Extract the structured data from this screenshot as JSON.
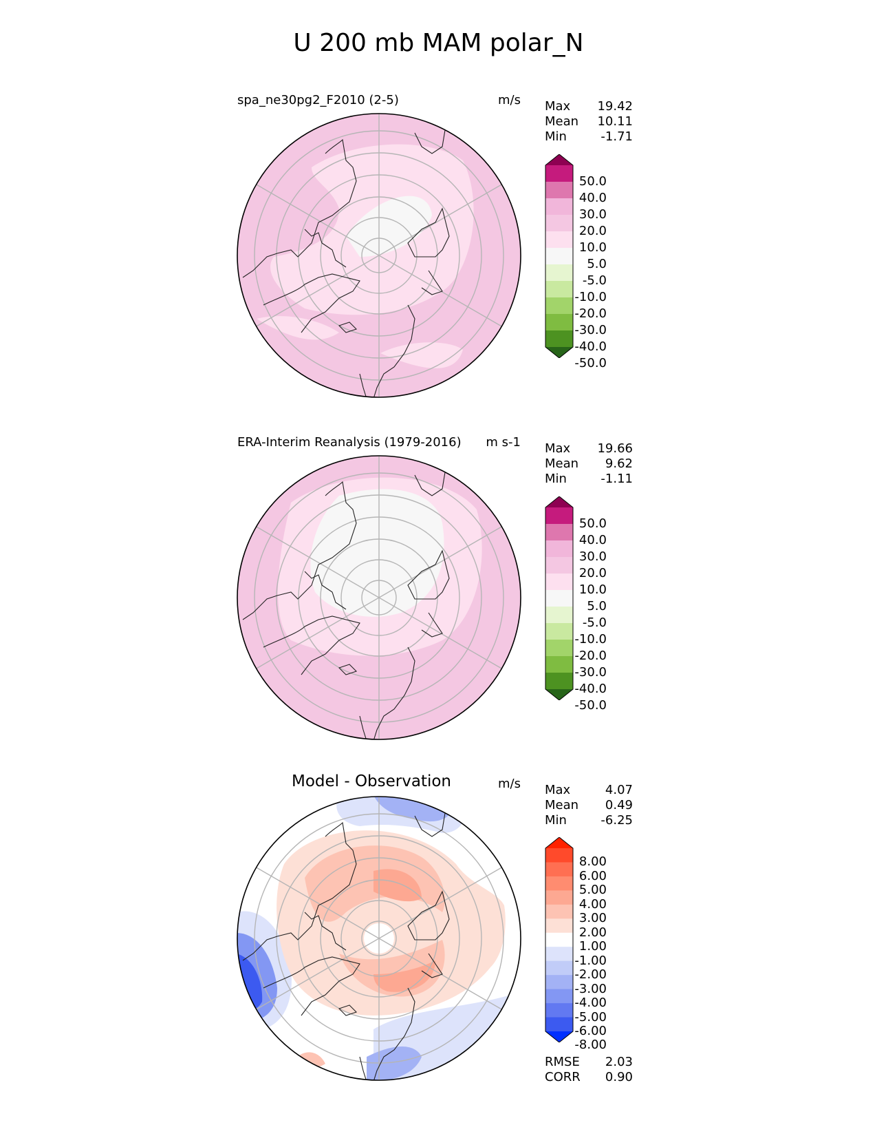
{
  "title": "U 200 mb MAM polar_N",
  "panels": [
    {
      "id": "test",
      "title": "spa_ne30pg2_F2010 (2-5)",
      "units": "m/s",
      "stats": [
        {
          "label": "Max",
          "value": "19.42"
        },
        {
          "label": "Mean",
          "value": "10.11"
        },
        {
          "label": "Min",
          "value": "-1.71"
        }
      ],
      "colorbar": {
        "labels": [
          "50.0",
          "40.0",
          "30.0",
          "20.0",
          "10.0",
          "5.0",
          "-5.0",
          "-10.0",
          "-20.0",
          "-30.0",
          "-40.0",
          "-50.0"
        ],
        "colors": [
          "#8e0152",
          "#c51b7d",
          "#de77ae",
          "#f1b6da",
          "#f4c7e2",
          "#fde0ef",
          "#f7f7f7",
          "#e6f5d0",
          "#c9e9a0",
          "#a2d46a",
          "#7fbc41",
          "#4d9221",
          "#276419"
        ]
      }
    },
    {
      "id": "reference",
      "title": "ERA-Interim Reanalysis (1979-2016)",
      "units": "m s-1",
      "stats": [
        {
          "label": "Max",
          "value": "19.66"
        },
        {
          "label": "Mean",
          "value": "9.62"
        },
        {
          "label": "Min",
          "value": "-1.11"
        }
      ],
      "colorbar": {
        "labels": [
          "50.0",
          "40.0",
          "30.0",
          "20.0",
          "10.0",
          "5.0",
          "-5.0",
          "-10.0",
          "-20.0",
          "-30.0",
          "-40.0",
          "-50.0"
        ],
        "colors": [
          "#8e0152",
          "#c51b7d",
          "#de77ae",
          "#f1b6da",
          "#f4c7e2",
          "#fde0ef",
          "#f7f7f7",
          "#e6f5d0",
          "#c9e9a0",
          "#a2d46a",
          "#7fbc41",
          "#4d9221",
          "#276419"
        ]
      }
    },
    {
      "id": "diff",
      "title": "Model - Observation",
      "units": "m/s",
      "stats": [
        {
          "label": "Max",
          "value": "4.07"
        },
        {
          "label": "Mean",
          "value": "0.49"
        },
        {
          "label": "Min",
          "value": "-6.25"
        }
      ],
      "extra_stats": [
        {
          "label": "RMSE",
          "value": "2.03"
        },
        {
          "label": "CORR",
          "value": "0.90"
        }
      ],
      "colorbar": {
        "labels": [
          "8.00",
          "6.00",
          "5.00",
          "4.00",
          "3.00",
          "2.00",
          "1.00",
          "-1.00",
          "-2.00",
          "-3.00",
          "-4.00",
          "-5.00",
          "-6.00",
          "-8.00"
        ],
        "colors": [
          "#ff2200",
          "#ff4a2b",
          "#ff6f52",
          "#ff8c70",
          "#fda892",
          "#fdc3b3",
          "#fde0d6",
          "#ffffff",
          "#dde3fb",
          "#c1ccf8",
          "#a3b2f5",
          "#8397f3",
          "#6279f1",
          "#3c5af0",
          "#0030ff"
        ]
      }
    }
  ],
  "chart_data": [
    {
      "type": "heatmap",
      "projection": "north-polar-stereographic",
      "title": "spa_ne30pg2_F2010 (2-5)",
      "variable": "U 200 mb MAM",
      "units": "m/s",
      "levels": [
        -50,
        -40,
        -30,
        -20,
        -10,
        -5,
        5,
        10,
        20,
        30,
        40,
        50
      ],
      "max": 19.42,
      "mean": 10.11,
      "min": -1.71
    },
    {
      "type": "heatmap",
      "projection": "north-polar-stereographic",
      "title": "ERA-Interim Reanalysis (1979-2016)",
      "variable": "U 200 mb MAM",
      "units": "m s-1",
      "levels": [
        -50,
        -40,
        -30,
        -20,
        -10,
        -5,
        5,
        10,
        20,
        30,
        40,
        50
      ],
      "max": 19.66,
      "mean": 9.62,
      "min": -1.11
    },
    {
      "type": "heatmap",
      "projection": "north-polar-stereographic",
      "title": "Model - Observation",
      "variable": "U 200 mb MAM difference",
      "units": "m/s",
      "levels": [
        -8,
        -6,
        -5,
        -4,
        -3,
        -2,
        -1,
        1,
        2,
        3,
        4,
        5,
        6,
        8
      ],
      "max": 4.07,
      "mean": 0.49,
      "min": -6.25,
      "rmse": 2.03,
      "corr": 0.9
    }
  ]
}
